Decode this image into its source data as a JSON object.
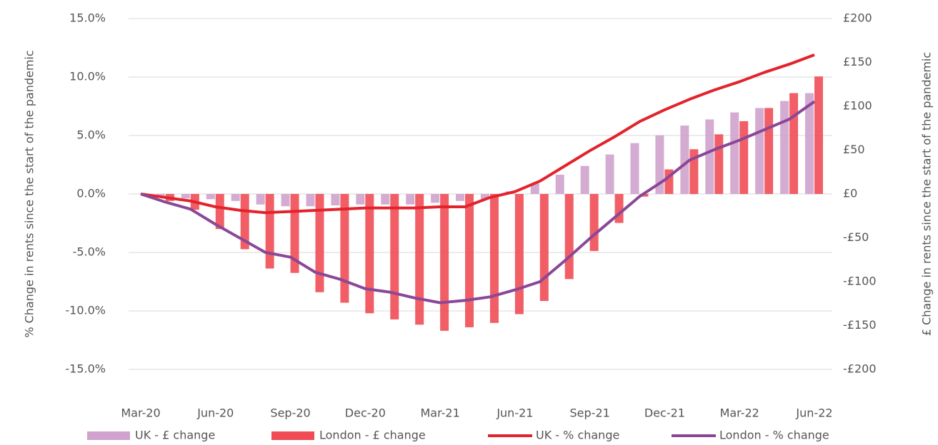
{
  "chart_data": {
    "type": "combo",
    "y_label": "% Change in rents since the start of the pandemic",
    "y2_label": "£ Change in rents since the start of the pandemic",
    "categories": [
      "Mar-20",
      null,
      null,
      "Jun-20",
      null,
      null,
      "Sep-20",
      null,
      null,
      "Dec-20",
      null,
      null,
      "Mar-21",
      null,
      null,
      "Jun-21",
      null,
      null,
      "Sep-21",
      null,
      null,
      "Dec-21",
      null,
      null,
      "Mar-22",
      null,
      null,
      "Jun-22"
    ],
    "ylim": [
      -15,
      15
    ],
    "yticks": [
      {
        "value": -15,
        "label": "-15.0%"
      },
      {
        "value": -10,
        "label": "-10.0%"
      },
      {
        "value": -5,
        "label": "-5.0%"
      },
      {
        "value": 0,
        "label": "0.0%"
      },
      {
        "value": 5,
        "label": "5.0%"
      },
      {
        "value": 10,
        "label": "10.0%"
      },
      {
        "value": 15,
        "label": "15.0%"
      }
    ],
    "y2lim": [
      -200,
      200
    ],
    "y2ticks": [
      {
        "value": -200,
        "label": "-£200"
      },
      {
        "value": -150,
        "label": "-£150"
      },
      {
        "value": -100,
        "label": "-£100"
      },
      {
        "value": -50,
        "label": "-£50"
      },
      {
        "value": 0,
        "label": "£0"
      },
      {
        "value": 50,
        "label": "£50"
      },
      {
        "value": 100,
        "label": "£100"
      },
      {
        "value": 150,
        "label": "£150"
      },
      {
        "value": 200,
        "label": "£200"
      }
    ],
    "grid": true,
    "legend": "bottom",
    "series": [
      {
        "name": "UK - £ change",
        "type": "bar",
        "axis": "y2",
        "color": "#cfa3cd",
        "values": [
          0,
          -3,
          -5,
          -6,
          -8,
          -12,
          -14,
          -14,
          -13,
          -12,
          -12,
          -12,
          -10,
          -8,
          -6,
          3,
          12,
          22,
          32,
          45,
          58,
          67,
          78,
          85,
          93,
          98,
          106,
          115
        ]
      },
      {
        "name": "London - £ change",
        "type": "bar",
        "axis": "y2",
        "color": "#ef4c55",
        "values": [
          0,
          -8,
          -18,
          -40,
          -63,
          -85,
          -90,
          -112,
          -124,
          -136,
          -143,
          -149,
          -156,
          -152,
          -147,
          -137,
          -122,
          -97,
          -65,
          -33,
          -3,
          28,
          51,
          68,
          83,
          98,
          115,
          134
        ]
      },
      {
        "name": "UK - % change",
        "type": "line",
        "color": "#e3232c",
        "values": [
          0,
          -0.3,
          -0.6,
          -1.1,
          -1.4,
          -1.6,
          -1.5,
          -1.4,
          -1.3,
          -1.2,
          -1.2,
          -1.2,
          -1.1,
          -1.1,
          -0.3,
          0.2,
          1.1,
          2.4,
          3.7,
          4.9,
          6.2,
          7.2,
          8.1,
          8.9,
          9.6,
          10.4,
          11.1,
          11.9
        ]
      },
      {
        "name": "London - % change",
        "type": "line",
        "color": "#8b4796",
        "values": [
          0,
          -0.7,
          -1.3,
          -2.6,
          -3.8,
          -5.0,
          -5.4,
          -6.7,
          -7.3,
          -8.1,
          -8.4,
          -8.9,
          -9.3,
          -9.1,
          -8.8,
          -8.2,
          -7.5,
          -5.7,
          -3.8,
          -2.0,
          -0.2,
          1.2,
          2.9,
          3.8,
          4.6,
          5.5,
          6.4,
          7.9
        ]
      }
    ]
  }
}
